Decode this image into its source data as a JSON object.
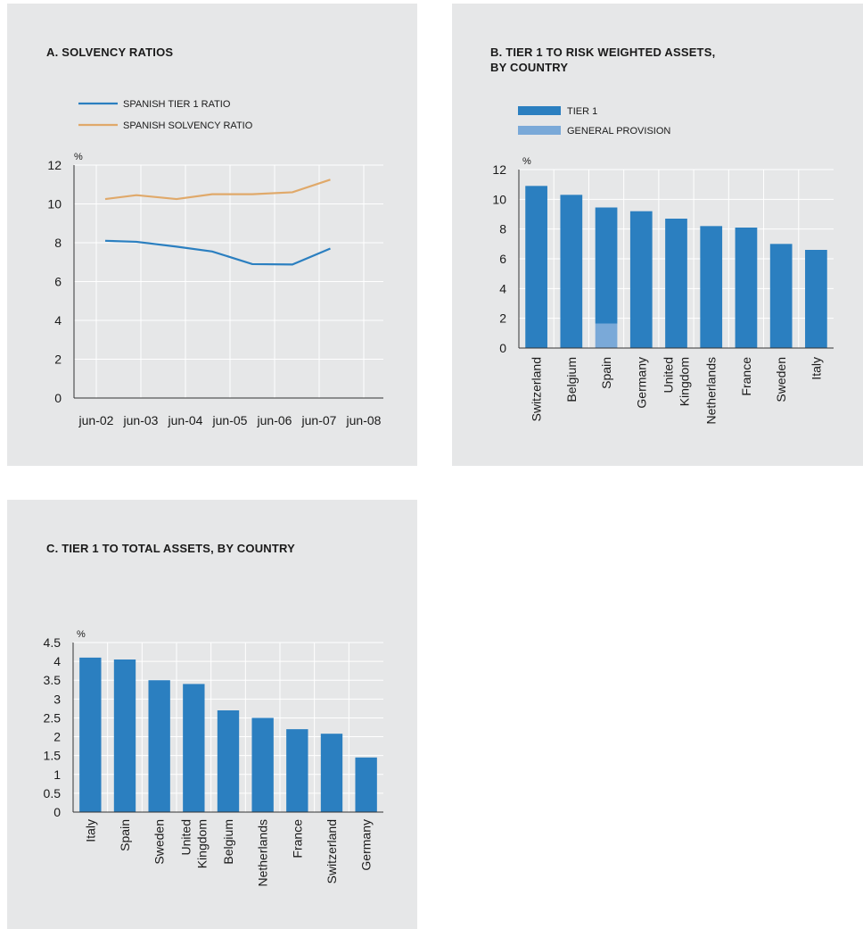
{
  "colors": {
    "tier1": "#2b7fc0",
    "provision": "#7aa9d8",
    "solvency": "#e0a96a",
    "grid": "#ffffff",
    "axis": "#333333",
    "panel": "#e6e7e8"
  },
  "chart_data": [
    {
      "id": "A",
      "type": "line",
      "title": "A. SOLVENCY RATIOS",
      "unit": "%",
      "x": [
        "jun-02",
        "jun-03",
        "jun-04",
        "jun-05",
        "jun-06",
        "jun-07",
        "jun-08"
      ],
      "x_positions": [
        0,
        1,
        2,
        3,
        4,
        5,
        6
      ],
      "series": [
        {
          "name": "SPANISH TIER 1 RATIO",
          "color": "#2b7fc0",
          "x": [
            0.2,
            0.9,
            1.8,
            2.6,
            3.5,
            4.4,
            5.25
          ],
          "values": [
            8.1,
            8.05,
            7.8,
            7.55,
            6.9,
            6.88,
            7.7
          ]
        },
        {
          "name": "SPANISH SOLVENCY RATIO",
          "color": "#e0a96a",
          "x": [
            0.2,
            0.9,
            1.8,
            2.6,
            3.5,
            4.4,
            5.25
          ],
          "values": [
            10.25,
            10.45,
            10.25,
            10.5,
            10.5,
            10.6,
            11.25
          ]
        }
      ],
      "ylim": [
        0,
        12
      ],
      "yticks": [
        "0",
        "2",
        "4",
        "6",
        "8",
        "10",
        "12"
      ],
      "grid": true,
      "legend": "top-left"
    },
    {
      "id": "B",
      "type": "bar",
      "title": "B. TIER 1 TO RISK WEIGHTED ASSETS, BY COUNTRY",
      "title_lines": [
        "B. TIER 1 TO RISK WEIGHTED ASSETS,",
        "BY COUNTRY"
      ],
      "unit": "%",
      "categories": [
        "Switzerland",
        "Belgium",
        "Spain",
        "Germany",
        "United Kingdom",
        "Netherlands",
        "France",
        "Sweden",
        "Italy"
      ],
      "category_lines": [
        [
          "Switzerland"
        ],
        [
          "Belgium"
        ],
        [
          "Spain"
        ],
        [
          "Germany"
        ],
        [
          "United",
          "Kingdom"
        ],
        [
          "Netherlands"
        ],
        [
          "France"
        ],
        [
          "Sweden"
        ],
        [
          "Italy"
        ]
      ],
      "series": [
        {
          "name": "TIER 1",
          "color": "#2b7fc0",
          "values": [
            10.9,
            10.3,
            7.8,
            9.2,
            8.7,
            8.2,
            8.1,
            7.0,
            6.6
          ]
        },
        {
          "name": "GENERAL PROVISION",
          "color": "#7aa9d8",
          "values": [
            0,
            0,
            1.65,
            0,
            0,
            0,
            0,
            0,
            0
          ],
          "stack_below": true
        }
      ],
      "ylim": [
        0,
        12
      ],
      "yticks": [
        "0",
        "2",
        "4",
        "6",
        "8",
        "10",
        "12"
      ],
      "grid": true,
      "legend": "top-left"
    },
    {
      "id": "C",
      "type": "bar",
      "title": "C. TIER 1 TO TOTAL ASSETS, BY COUNTRY",
      "unit": "%",
      "categories": [
        "Italy",
        "Spain",
        "Sweden",
        "United Kingdom",
        "Belgium",
        "Netherlands",
        "France",
        "Switzerland",
        "Germany"
      ],
      "category_lines": [
        [
          "Italy"
        ],
        [
          "Spain"
        ],
        [
          "Sweden"
        ],
        [
          "United",
          "Kingdom"
        ],
        [
          "Belgium"
        ],
        [
          "Netherlands"
        ],
        [
          "France"
        ],
        [
          "Switzerland"
        ],
        [
          "Germany"
        ]
      ],
      "series": [
        {
          "name": "TIER 1",
          "color": "#2b7fc0",
          "values": [
            4.1,
            4.05,
            3.5,
            3.4,
            2.7,
            2.5,
            2.2,
            2.08,
            1.45
          ]
        }
      ],
      "ylim": [
        0,
        4.5
      ],
      "yticks": [
        "0",
        "0.5",
        "1",
        "1.5",
        "2",
        "2.5",
        "3",
        "3.5",
        "4",
        "4.5"
      ],
      "grid": true
    }
  ]
}
